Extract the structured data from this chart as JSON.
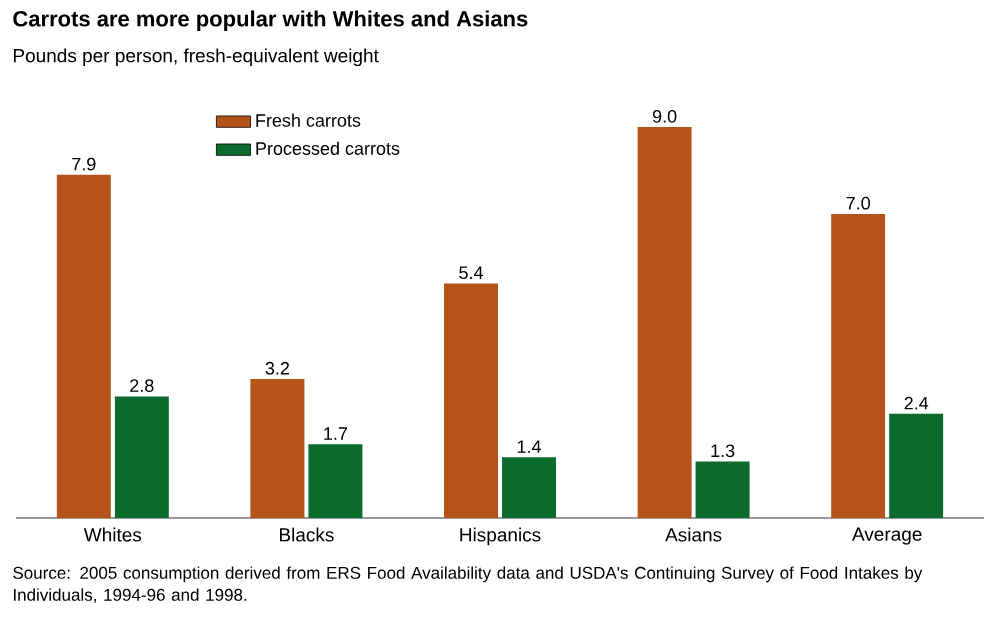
{
  "chart_data": {
    "type": "bar",
    "title": "Carrots are more popular with Whites and Asians",
    "subtitle": "Pounds per person, fresh-equivalent weight",
    "categories": [
      "Whites",
      "Blacks",
      "Hispanics",
      "Asians",
      "Average"
    ],
    "series": [
      {
        "name": "Fresh carrots",
        "color": "#b5531a",
        "values": [
          7.9,
          3.2,
          5.4,
          9.0,
          7.0
        ],
        "value_labels": [
          "7.9",
          "3.2",
          "5.4",
          "9.0",
          "7.0"
        ]
      },
      {
        "name": "Processed carrots",
        "color": "#0b6a2c",
        "values": [
          2.8,
          1.7,
          1.4,
          1.3,
          2.4
        ],
        "value_labels": [
          "2.8",
          "1.7",
          "1.4",
          "1.3",
          "2.4"
        ]
      }
    ],
    "legend": "top left",
    "annotations": [
      "Source: 2005 consumption derived from ERS Food Availability data and USDA's Continuing Survey of Food Intakes by Individuals, 1994-96 and 1998."
    ]
  }
}
